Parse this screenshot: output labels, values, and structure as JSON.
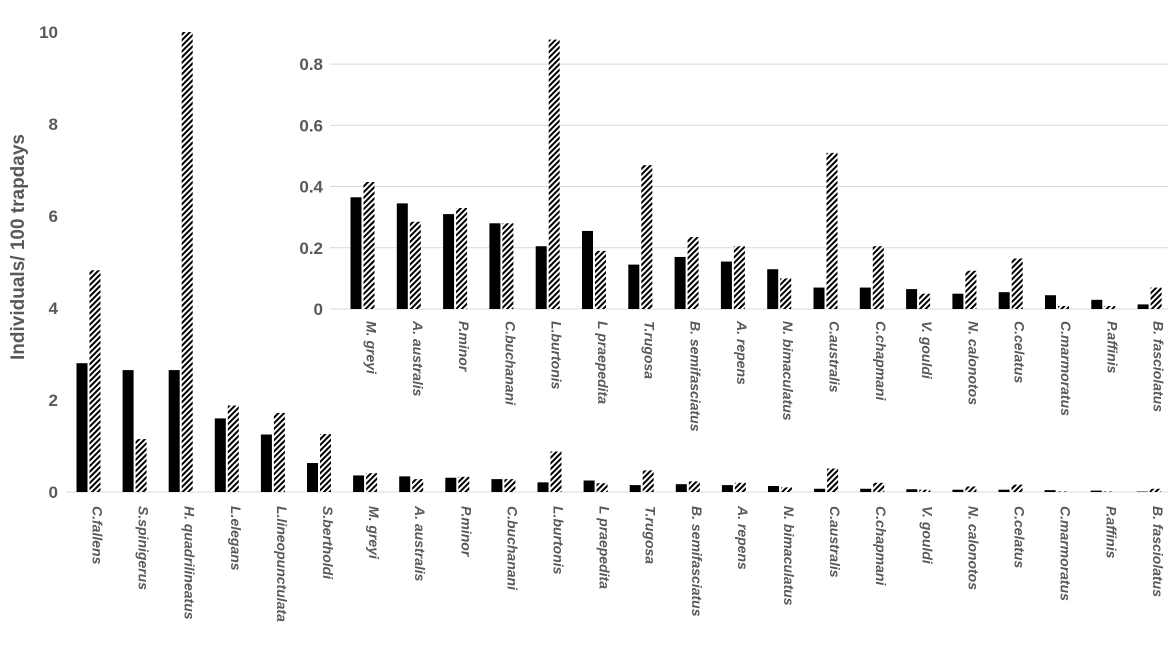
{
  "chart_data": [
    {
      "id": "main",
      "type": "bar",
      "ylabel": "Individuals/ 100 trapdays",
      "ylim": [
        0,
        10
      ],
      "yticks": [
        "0",
        "2",
        "4",
        "6",
        "8",
        "10"
      ],
      "grid": false,
      "categories": [
        "C.fallens",
        "S.spinigerus",
        "H. quadrilineatus",
        "L.elegans",
        "L.lineopunctulata",
        "S.bertholdi",
        "M. greyi",
        "A. australis",
        "P.minor",
        "C.buchanani",
        "L.burtonis",
        "L praepedita",
        "T.rugosa",
        "B. semifasciatus",
        "A. repens",
        "N. bimaculatus",
        "C.australis",
        "C.chapmani",
        "V. gouldi",
        "N. calonotos",
        "C.celatus",
        "C.marmoratus",
        "P.affinis",
        "B. fasciolatus"
      ],
      "series": [
        {
          "style": "solid",
          "color": "#000000",
          "values": [
            2.8,
            2.65,
            2.65,
            1.6,
            1.25,
            0.63,
            0.36,
            0.34,
            0.31,
            0.28,
            0.21,
            0.25,
            0.15,
            0.17,
            0.15,
            0.13,
            0.07,
            0.07,
            0.06,
            0.05,
            0.05,
            0.04,
            0.03,
            0.01
          ]
        },
        {
          "style": "hatched",
          "color": "#000000",
          "values": [
            4.82,
            1.15,
            10.6,
            1.88,
            1.72,
            1.26,
            0.41,
            0.28,
            0.33,
            0.28,
            0.88,
            0.19,
            0.47,
            0.23,
            0.2,
            0.1,
            0.51,
            0.2,
            0.05,
            0.12,
            0.16,
            0.01,
            0.01,
            0.07
          ]
        }
      ]
    },
    {
      "id": "inset",
      "type": "bar",
      "ylim": [
        0,
        0.9
      ],
      "yticks": [
        "0",
        "0.2",
        "0.4",
        "0.6",
        "0.8"
      ],
      "grid": true,
      "categories": [
        "M. greyi",
        "A. australis",
        "P.minor",
        "C.buchanani",
        "L.burtonis",
        "L praepedita",
        "T.rugosa",
        "B. semifasciatus",
        "A. repens",
        "N. bimaculatus",
        "C.australis",
        "C.chapmani",
        "V. gouldi",
        "N. calonotos",
        "C.celatus",
        "C.marmoratus",
        "P.affinis",
        "B. fasciolatus"
      ],
      "series": [
        {
          "style": "solid",
          "color": "#000000",
          "values": [
            0.365,
            0.345,
            0.31,
            0.28,
            0.205,
            0.255,
            0.145,
            0.17,
            0.155,
            0.13,
            0.07,
            0.07,
            0.065,
            0.05,
            0.055,
            0.045,
            0.03,
            0.015
          ]
        },
        {
          "style": "hatched",
          "color": "#000000",
          "values": [
            0.415,
            0.285,
            0.33,
            0.28,
            0.88,
            0.19,
            0.47,
            0.235,
            0.205,
            0.1,
            0.51,
            0.205,
            0.05,
            0.125,
            0.165,
            0.01,
            0.01,
            0.07
          ]
        }
      ]
    }
  ]
}
